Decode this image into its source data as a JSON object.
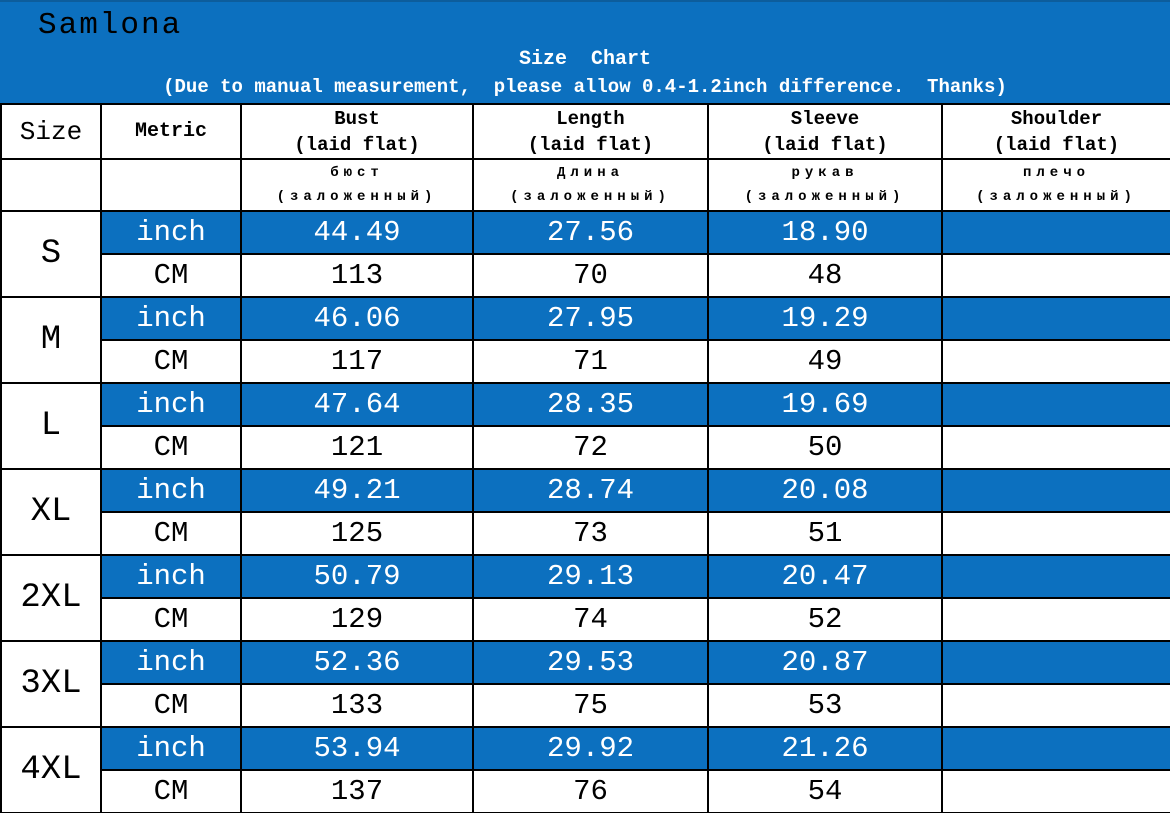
{
  "banner": {
    "brand": "Samlona",
    "title": "Size  Chart",
    "subtitle": "(Due to manual measurement,  please allow 0.4-1.2inch difference.  Thanks)"
  },
  "colors": {
    "accent_blue": "#0c70bf",
    "border_black": "#000000",
    "banner_text": "#ffffff",
    "brand_text": "#000000"
  },
  "table": {
    "header": {
      "size": "Size",
      "metric": "Metric",
      "columns": [
        {
          "en": "Bust",
          "en_sub": "(laid flat)",
          "ru": "бюст",
          "ru_sub": "(заложенный)"
        },
        {
          "en": "Length",
          "en_sub": "(laid flat)",
          "ru": "Длина",
          "ru_sub": "(заложенный)"
        },
        {
          "en": "Sleeve",
          "en_sub": "(laid flat)",
          "ru": "рукав",
          "ru_sub": "(заложенный)"
        },
        {
          "en": "Shoulder",
          "en_sub": "(laid flat)",
          "ru": "плечо",
          "ru_sub": "(заложенный)"
        }
      ]
    },
    "units": {
      "inch": "inch",
      "cm": "CM"
    },
    "rows": [
      {
        "size": "S",
        "inch": [
          "44.49",
          "27.56",
          "18.90",
          ""
        ],
        "cm": [
          "113",
          "70",
          "48",
          ""
        ]
      },
      {
        "size": "M",
        "inch": [
          "46.06",
          "27.95",
          "19.29",
          ""
        ],
        "cm": [
          "117",
          "71",
          "49",
          ""
        ]
      },
      {
        "size": "L",
        "inch": [
          "47.64",
          "28.35",
          "19.69",
          ""
        ],
        "cm": [
          "121",
          "72",
          "50",
          ""
        ]
      },
      {
        "size": "XL",
        "inch": [
          "49.21",
          "28.74",
          "20.08",
          ""
        ],
        "cm": [
          "125",
          "73",
          "51",
          ""
        ]
      },
      {
        "size": "2XL",
        "inch": [
          "50.79",
          "29.13",
          "20.47",
          ""
        ],
        "cm": [
          "129",
          "74",
          "52",
          ""
        ]
      },
      {
        "size": "3XL",
        "inch": [
          "52.36",
          "29.53",
          "20.87",
          ""
        ],
        "cm": [
          "133",
          "75",
          "53",
          ""
        ]
      },
      {
        "size": "4XL",
        "inch": [
          "53.94",
          "29.92",
          "21.26",
          ""
        ],
        "cm": [
          "137",
          "76",
          "54",
          ""
        ]
      }
    ]
  },
  "chart_data": {
    "type": "table",
    "title": "Size Chart",
    "note": "(Due to manual measurement, please allow 0.4-1.2inch difference. Thanks)",
    "columns": [
      "Size",
      "Metric",
      "Bust (laid flat)",
      "Length (laid flat)",
      "Sleeve (laid flat)",
      "Shoulder (laid flat)"
    ],
    "rows_inch": {
      "S": [
        44.49,
        27.56,
        18.9
      ],
      "M": [
        46.06,
        27.95,
        19.29
      ],
      "L": [
        47.64,
        28.35,
        19.69
      ],
      "XL": [
        49.21,
        28.74,
        20.08
      ],
      "2XL": [
        50.79,
        29.13,
        20.47
      ],
      "3XL": [
        52.36,
        29.53,
        20.87
      ],
      "4XL": [
        53.94,
        29.92,
        21.26
      ]
    },
    "rows_cm": {
      "S": [
        113,
        70,
        48
      ],
      "M": [
        117,
        71,
        49
      ],
      "L": [
        121,
        72,
        50
      ],
      "XL": [
        125,
        73,
        51
      ],
      "2XL": [
        129,
        74,
        52
      ],
      "3XL": [
        133,
        75,
        53
      ],
      "4XL": [
        137,
        76,
        54
      ]
    }
  }
}
